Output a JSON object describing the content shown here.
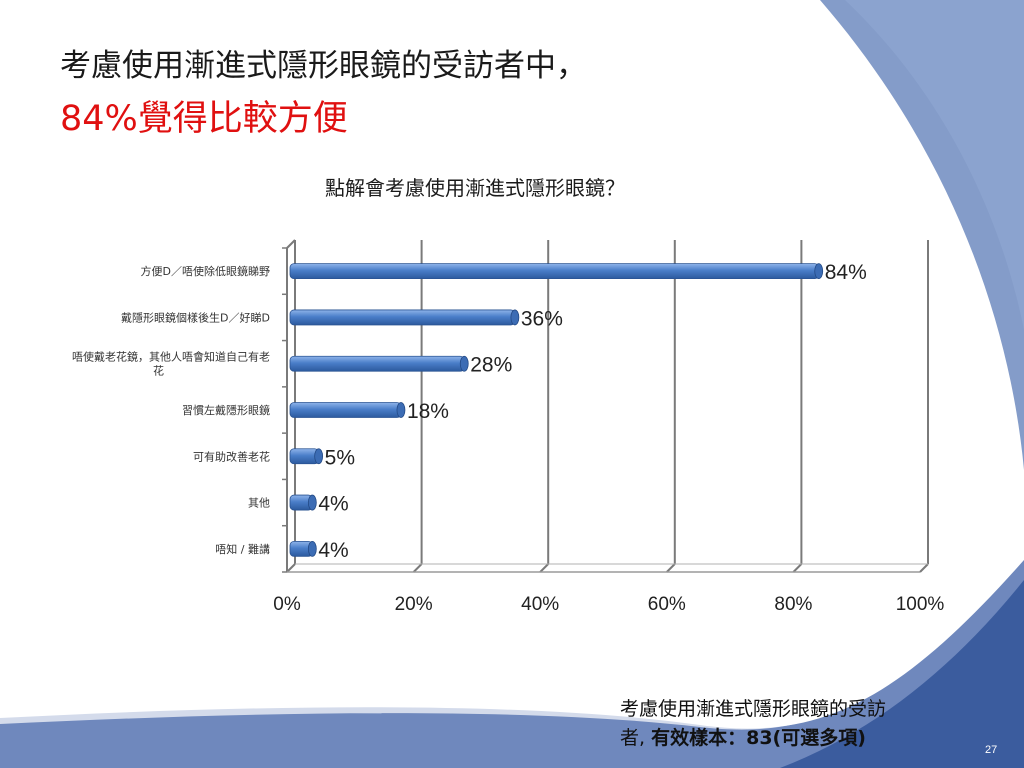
{
  "slide": {
    "title_line1": "考慮使用漸進式隱形眼鏡的受訪者中，",
    "title_line2": "84%覺得比較方便",
    "note_line1": "考慮使用漸進式隱形眼鏡的受訪",
    "note_line2_prefix": "者, ",
    "note_line2_bold": "有效樣本：83(可選多項)",
    "page_number": "27",
    "colors": {
      "title": "#1a1a1a",
      "highlight": "#e01010",
      "bar": "#4a7ec9",
      "background_wave": "#3b5c9e"
    }
  },
  "chart_data": {
    "type": "bar",
    "orientation": "horizontal",
    "title": "點解會考慮使用漸進式隱形眼鏡？",
    "categories": [
      [
        "方便D／唔使除低眼鏡睇野"
      ],
      [
        "戴隱形眼鏡個樣後生D／好睇D"
      ],
      [
        "唔使戴老花鏡，其他人唔會知道自己有老",
        "花"
      ],
      [
        "習慣左戴隱形眼鏡"
      ],
      [
        "可有助改善老花"
      ],
      [
        "其他"
      ],
      [
        "唔知 / 難講"
      ]
    ],
    "values": [
      84,
      36,
      28,
      18,
      5,
      4,
      4
    ],
    "value_labels": [
      "84%",
      "36%",
      "28%",
      "18%",
      "5%",
      "4%",
      "4%"
    ],
    "xlim": [
      0,
      100
    ],
    "x_ticks": [
      0,
      20,
      40,
      60,
      80,
      100
    ],
    "x_tick_labels": [
      "0%",
      "20%",
      "40%",
      "60%",
      "80%",
      "100%"
    ],
    "grid": true,
    "legend": "none"
  }
}
